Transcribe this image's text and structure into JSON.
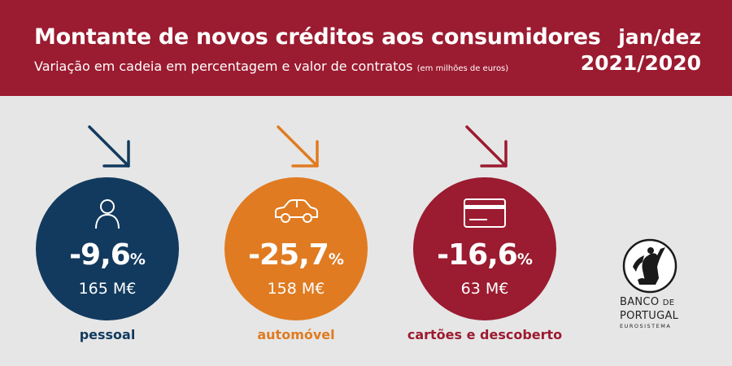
{
  "header": {
    "title": "Montante de novos créditos aos consumidores",
    "subtitle": "Variação em cadeia em percentagem e valor de contratos",
    "subtitle_note": "(em milhões de euros)",
    "period_line1": "jan/dez",
    "period_line2": "2021/2020",
    "background_color": "#9b1b30"
  },
  "cards": [
    {
      "label": "pessoal",
      "value": "-9,6",
      "unit": "%",
      "amount": "165 M€",
      "color": "#123a5e",
      "icon": "person-icon",
      "trend": "down"
    },
    {
      "label": "automóvel",
      "value": "-25,7",
      "unit": "%",
      "amount": "158 M€",
      "color": "#e07b21",
      "icon": "car-icon",
      "trend": "down"
    },
    {
      "label": "cartões e descoberto",
      "value": "-16,6",
      "unit": "%",
      "amount": "63 M€",
      "color": "#9b1b30",
      "icon": "credit-card-icon",
      "trend": "down"
    }
  ],
  "logo": {
    "line1": "BANCO",
    "line1_suffix": "DE",
    "line2": "PORTUGAL",
    "line3": "EUROSISTEMA"
  }
}
